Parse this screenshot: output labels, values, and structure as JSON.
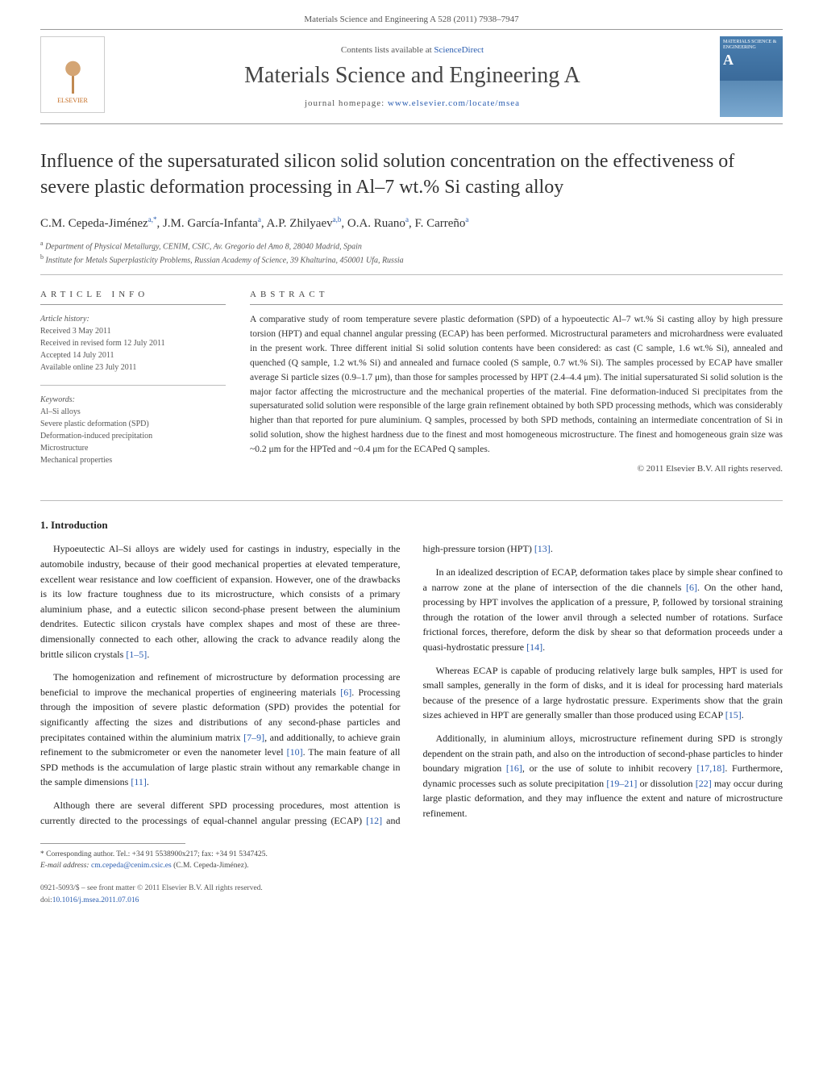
{
  "header_citation": "Materials Science and Engineering A 528 (2011) 7938–7947",
  "masthead": {
    "contents_prefix": "Contents lists available at ",
    "contents_link": "ScienceDirect",
    "journal_name": "Materials Science and Engineering A",
    "homepage_prefix": "journal homepage: ",
    "homepage_url": "www.elsevier.com/locate/msea",
    "publisher_name": "ELSEVIER",
    "cover_text_top": "MATERIALS SCIENCE & ENGINEERING",
    "cover_text_letter": "A"
  },
  "article": {
    "title": "Influence of the supersaturated silicon solid solution concentration on the effectiveness of severe plastic deformation processing in Al–7 wt.% Si casting alloy",
    "authors_html": "C.M. Cepeda-Jiménez",
    "author_list": [
      {
        "name": "C.M. Cepeda-Jiménez",
        "marks": "a,*"
      },
      {
        "name": "J.M. García-Infanta",
        "marks": "a"
      },
      {
        "name": "A.P. Zhilyaev",
        "marks": "a,b"
      },
      {
        "name": "O.A. Ruano",
        "marks": "a"
      },
      {
        "name": "F. Carreño",
        "marks": "a"
      }
    ],
    "affiliations": [
      {
        "mark": "a",
        "text": "Department of Physical Metallurgy, CENIM, CSIC, Av. Gregorio del Amo 8, 28040 Madrid, Spain"
      },
      {
        "mark": "b",
        "text": "Institute for Metals Superplasticity Problems, Russian Academy of Science, 39 Khalturina, 450001 Ufa, Russia"
      }
    ]
  },
  "article_info": {
    "heading": "article info",
    "history_label": "Article history:",
    "history": [
      "Received 3 May 2011",
      "Received in revised form 12 July 2011",
      "Accepted 14 July 2011",
      "Available online 23 July 2011"
    ],
    "keywords_label": "Keywords:",
    "keywords": [
      "Al–Si alloys",
      "Severe plastic deformation (SPD)",
      "Deformation-induced precipitation",
      "Microstructure",
      "Mechanical properties"
    ]
  },
  "abstract": {
    "heading": "abstract",
    "body": "A comparative study of room temperature severe plastic deformation (SPD) of a hypoeutectic Al–7 wt.% Si casting alloy by high pressure torsion (HPT) and equal channel angular pressing (ECAP) has been performed. Microstructural parameters and microhardness were evaluated in the present work. Three different initial Si solid solution contents have been considered: as cast (C sample, 1.6 wt.% Si), annealed and quenched (Q sample, 1.2 wt.% Si) and annealed and furnace cooled (S sample, 0.7 wt.% Si). The samples processed by ECAP have smaller average Si particle sizes (0.9–1.7 μm), than those for samples processed by HPT (2.4–4.4 μm). The initial supersaturated Si solid solution is the major factor affecting the microstructure and the mechanical properties of the material. Fine deformation-induced Si precipitates from the supersaturated solid solution were responsible of the large grain refinement obtained by both SPD processing methods, which was considerably higher than that reported for pure aluminium. Q samples, processed by both SPD methods, containing an intermediate concentration of Si in solid solution, show the highest hardness due to the finest and most homogeneous microstructure. The finest and homogeneous grain size was ~0.2 μm for the HPTed and ~0.4 μm for the ECAPed Q samples.",
    "copyright": "© 2011 Elsevier B.V. All rights reserved."
  },
  "sections": {
    "intro_heading": "1. Introduction",
    "paragraphs": [
      "Hypoeutectic Al–Si alloys are widely used for castings in industry, especially in the automobile industry, because of their good mechanical properties at elevated temperature, excellent wear resistance and low coefficient of expansion. However, one of the drawbacks is its low fracture toughness due to its microstructure, which consists of a primary aluminium phase, and a eutectic silicon second-phase present between the aluminium dendrites. Eutectic silicon crystals have complex shapes and most of these are three-dimensionally connected to each other, allowing the crack to advance readily along the brittle silicon crystals [1–5].",
      "The homogenization and refinement of microstructure by deformation processing are beneficial to improve the mechanical properties of engineering materials [6]. Processing through the imposition of severe plastic deformation (SPD) provides the potential for significantly affecting the sizes and distributions of any second-phase particles and precipitates contained within the aluminium matrix [7–9], and additionally, to achieve grain refinement to the submicrometer or even the nanometer level [10]. The main feature of all SPD methods is the accumulation of large plastic strain without any remarkable change in the sample dimensions [11].",
      "Although there are several different SPD processing procedures, most attention is currently directed to the processings of equal-channel angular pressing (ECAP) [12] and high-pressure torsion (HPT) [13].",
      "In an idealized description of ECAP, deformation takes place by simple shear confined to a narrow zone at the plane of intersection of the die channels [6]. On the other hand, processing by HPT involves the application of a pressure, P, followed by torsional straining through the rotation of the lower anvil through a selected number of rotations. Surface frictional forces, therefore, deform the disk by shear so that deformation proceeds under a quasi-hydrostatic pressure [14].",
      "Whereas ECAP is capable of producing relatively large bulk samples, HPT is used for small samples, generally in the form of disks, and it is ideal for processing hard materials because of the presence of a large hydrostatic pressure. Experiments show that the grain sizes achieved in HPT are generally smaller than those produced using ECAP [15].",
      "Additionally, in aluminium alloys, microstructure refinement during SPD is strongly dependent on the strain path, and also on the introduction of second-phase particles to hinder boundary migration [16], or the use of solute to inhibit recovery [17,18]. Furthermore, dynamic processes such as solute precipitation [19–21] or dissolution [22] may occur during large plastic deformation, and they may influence the extent and nature of microstructure refinement."
    ]
  },
  "footnotes": {
    "corr_label": "* Corresponding author. Tel.: +34 91 5538900x217; fax: +34 91 5347425.",
    "email_label": "E-mail address:",
    "email": "cm.cepeda@cenim.csic.es",
    "email_paren": "(C.M. Cepeda-Jiménez)."
  },
  "front_matter": {
    "issn_line": "0921-5093/$ – see front matter © 2011 Elsevier B.V. All rights reserved.",
    "doi_label": "doi:",
    "doi": "10.1016/j.msea.2011.07.016"
  },
  "colors": {
    "link": "#2a5db0",
    "text": "#333333",
    "muted": "#555555",
    "rule": "#999999"
  }
}
